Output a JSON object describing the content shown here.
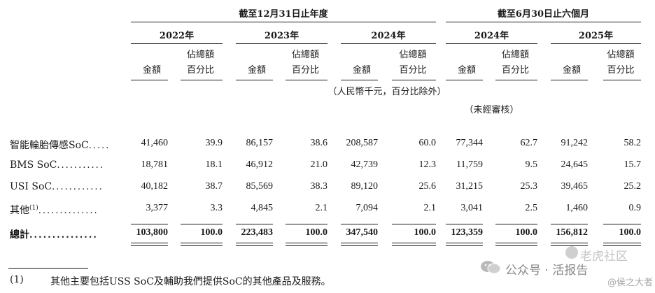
{
  "header": {
    "group_annual": "截至12月31日止年度",
    "group_half": "截至6月30日止六個月",
    "years": [
      "2022年",
      "2023年",
      "2024年",
      "2024年",
      "2025年"
    ],
    "col_amount": "金額",
    "col_pct_line1": "佔總額",
    "col_pct_line2": "百分比",
    "unit_note": "（人民幣千元，百分比除外）",
    "audit_note": "（未經審核）"
  },
  "rows": [
    {
      "label": "智能輪胎傳感SoC",
      "dots": ".....",
      "values": [
        "41,460",
        "39.9",
        "86,157",
        "38.6",
        "208,587",
        "60.0",
        "77,344",
        "62.7",
        "91,242",
        "58.2"
      ]
    },
    {
      "label": "BMS SoC",
      "dots": "...........",
      "values": [
        "18,781",
        "18.1",
        "46,912",
        "21.0",
        "42,739",
        "12.3",
        "11,759",
        "9.5",
        "24,645",
        "15.7"
      ]
    },
    {
      "label": "USI SoC",
      "dots": "............",
      "values": [
        "40,182",
        "38.7",
        "85,569",
        "38.3",
        "89,120",
        "25.6",
        "31,215",
        "25.3",
        "39,465",
        "25.2"
      ]
    },
    {
      "label": "其他",
      "sup": "(1)",
      "dots": "..............",
      "values": [
        "3,377",
        "3.3",
        "4,845",
        "2.1",
        "7,094",
        "2.1",
        "3,041",
        "2.5",
        "1,460",
        "0.9"
      ]
    }
  ],
  "total": {
    "label": "總計",
    "dots": "...............",
    "values": [
      "103,800",
      "100.0",
      "223,483",
      "100.0",
      "347,540",
      "100.0",
      "123,359",
      "100.0",
      "156,812",
      "100.0"
    ]
  },
  "footnote": {
    "marker": "(1)",
    "text": "其他主要包括USS SoC及輔助我們提供SoC的其他產品及服務。"
  },
  "watermark": {
    "channel": "公众号 · 活报告",
    "community": "老虎社区",
    "handle": "@侯之大者"
  }
}
